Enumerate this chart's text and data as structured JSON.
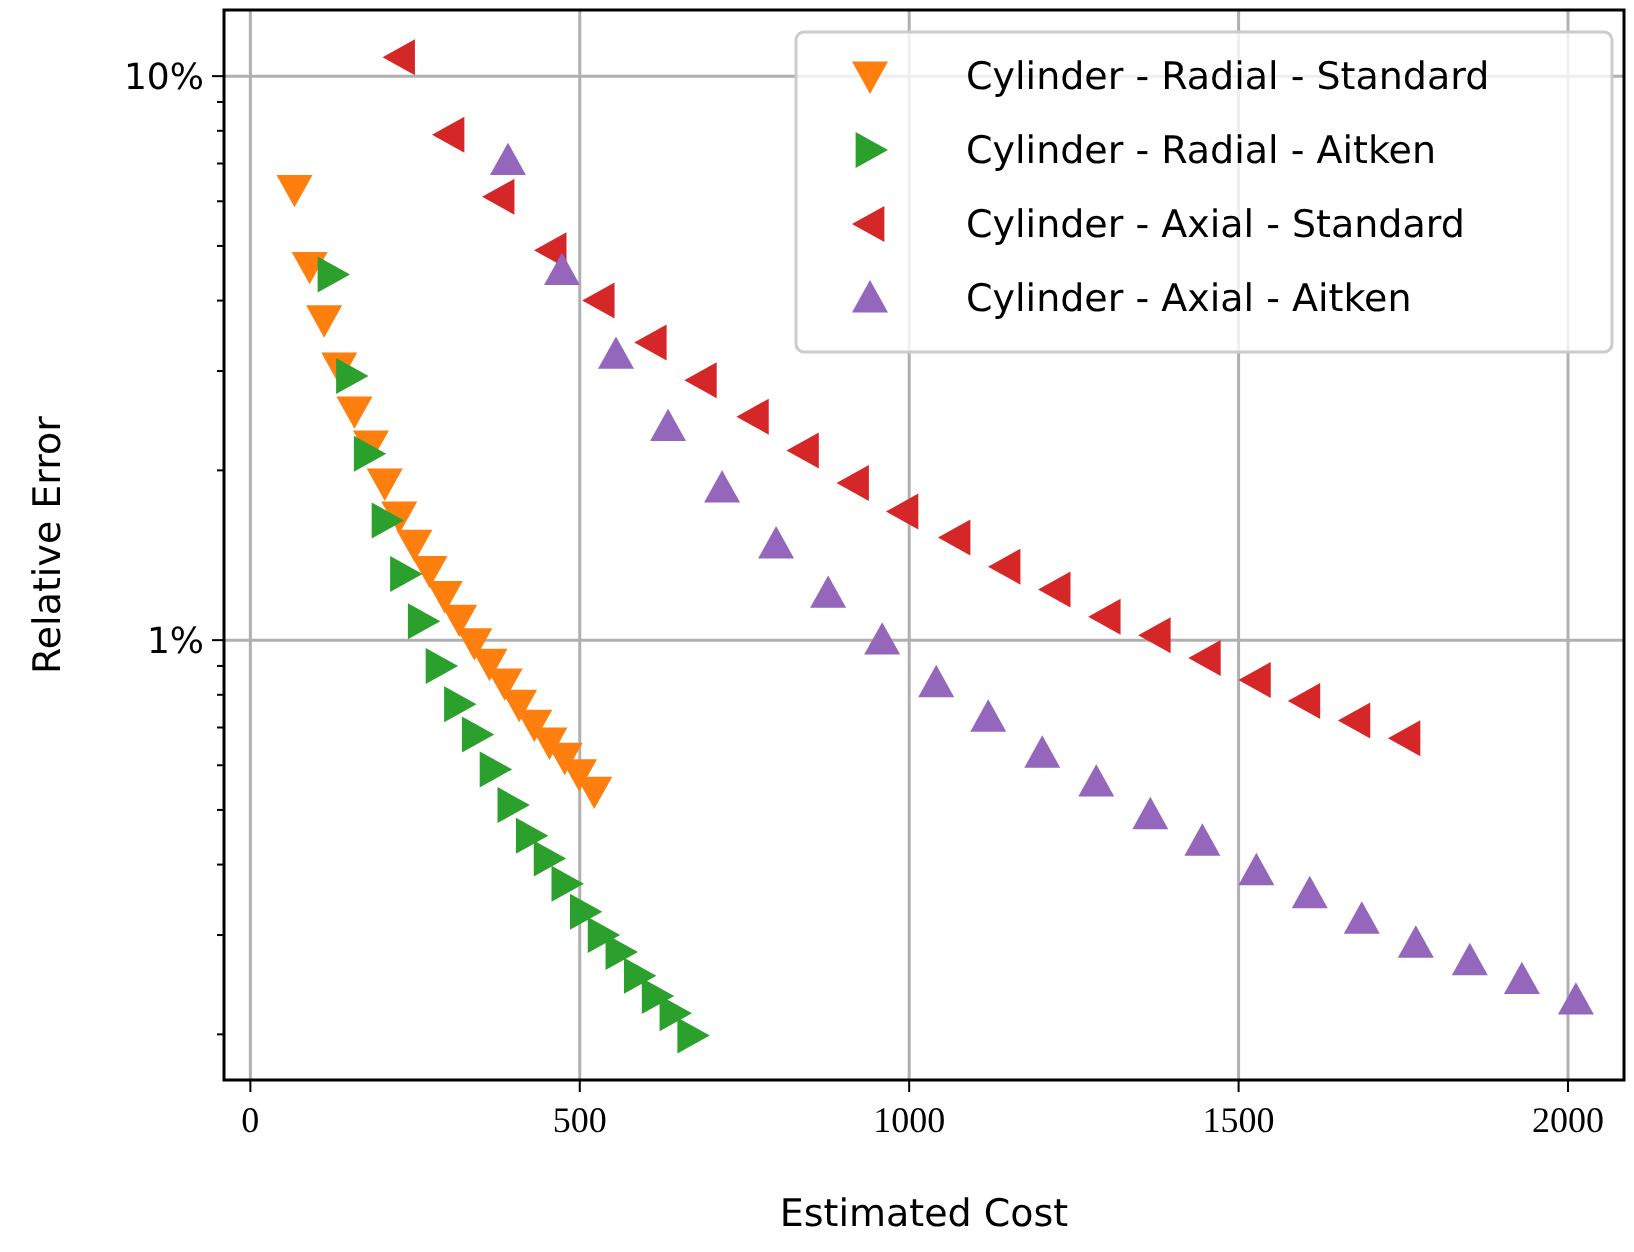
{
  "chart_data": {
    "type": "scatter",
    "xlabel": "Estimated Cost",
    "ylabel": "Relative Error",
    "log": "y",
    "grid": true,
    "legend": "top right",
    "xlim": [
      -40,
      2085
    ],
    "xticks": [
      0,
      500,
      1000,
      1500,
      2000
    ],
    "ylim": [
      0.166,
      13.1
    ],
    "yticks": [
      {
        "value": 0.2,
        "label": null
      },
      {
        "value": 0.3,
        "label": null
      },
      {
        "value": 0.4,
        "label": null
      },
      {
        "value": 0.5,
        "label": null
      },
      {
        "value": 0.6,
        "label": null
      },
      {
        "value": 0.7,
        "label": null
      },
      {
        "value": 0.8,
        "label": null
      },
      {
        "value": 0.9,
        "label": null
      },
      {
        "value": 1,
        "label": "1%"
      },
      {
        "value": 2,
        "label": null
      },
      {
        "value": 3,
        "label": null
      },
      {
        "value": 4,
        "label": null
      },
      {
        "value": 5,
        "label": null
      },
      {
        "value": 6,
        "label": null
      },
      {
        "value": 7,
        "label": null
      },
      {
        "value": 8,
        "label": null
      },
      {
        "value": 9,
        "label": null
      },
      {
        "value": 10,
        "label": "10%"
      }
    ],
    "series": [
      {
        "name": "Cylinder - Radial - Standard",
        "color": "#ff7f0e",
        "marker": "triangle-down",
        "x": [
          67,
          90,
          112,
          135,
          158,
          183,
          204,
          226,
          249,
          272,
          295,
          317,
          340,
          363,
          386,
          408,
          431,
          454,
          477,
          499,
          522
        ],
        "values": [
          6.3,
          4.6,
          3.7,
          3.05,
          2.55,
          2.22,
          1.9,
          1.66,
          1.48,
          1.33,
          1.2,
          1.09,
          0.99,
          0.91,
          0.84,
          0.77,
          0.71,
          0.66,
          0.62,
          0.58,
          0.54
        ]
      },
      {
        "name": "Cylinder - Radial - Aitken",
        "color": "#2ca02c",
        "marker": "triangle-right",
        "x": [
          124,
          152,
          179,
          206,
          234,
          261,
          288,
          316,
          343,
          370,
          397,
          425,
          452,
          479,
          507,
          534,
          561,
          589,
          616,
          643,
          670
        ],
        "values": [
          4.45,
          2.94,
          2.14,
          1.63,
          1.31,
          1.08,
          0.9,
          0.77,
          0.68,
          0.59,
          0.51,
          0.45,
          0.41,
          0.37,
          0.33,
          0.3,
          0.28,
          0.254,
          0.234,
          0.218,
          0.199
        ]
      },
      {
        "name": "Cylinder - Axial - Standard",
        "color": "#d62728",
        "marker": "triangle-left",
        "x": [
          228,
          303,
          379,
          458,
          531,
          610,
          686,
          765,
          841,
          917,
          992,
          1071,
          1147,
          1223,
          1299,
          1375,
          1451,
          1527,
          1602,
          1678,
          1754
        ],
        "values": [
          10.8,
          7.87,
          6.11,
          4.91,
          4.0,
          3.37,
          2.89,
          2.49,
          2.17,
          1.9,
          1.69,
          1.52,
          1.35,
          1.23,
          1.1,
          1.02,
          0.93,
          0.85,
          0.78,
          0.72,
          0.67
        ]
      },
      {
        "name": "Cylinder - Axial - Aitken",
        "color": "#9467bd",
        "marker": "triangle-up",
        "x": [
          391,
          473,
          555,
          634,
          716,
          798,
          877,
          959,
          1041,
          1120,
          1202,
          1284,
          1366,
          1445,
          1527,
          1608,
          1687,
          1769,
          1851,
          1930,
          2012
        ],
        "values": [
          7.08,
          4.52,
          3.21,
          2.39,
          1.86,
          1.48,
          1.21,
          1.0,
          0.84,
          0.73,
          0.63,
          0.56,
          0.49,
          0.44,
          0.39,
          0.355,
          0.32,
          0.29,
          0.27,
          0.25,
          0.23
        ]
      }
    ]
  }
}
